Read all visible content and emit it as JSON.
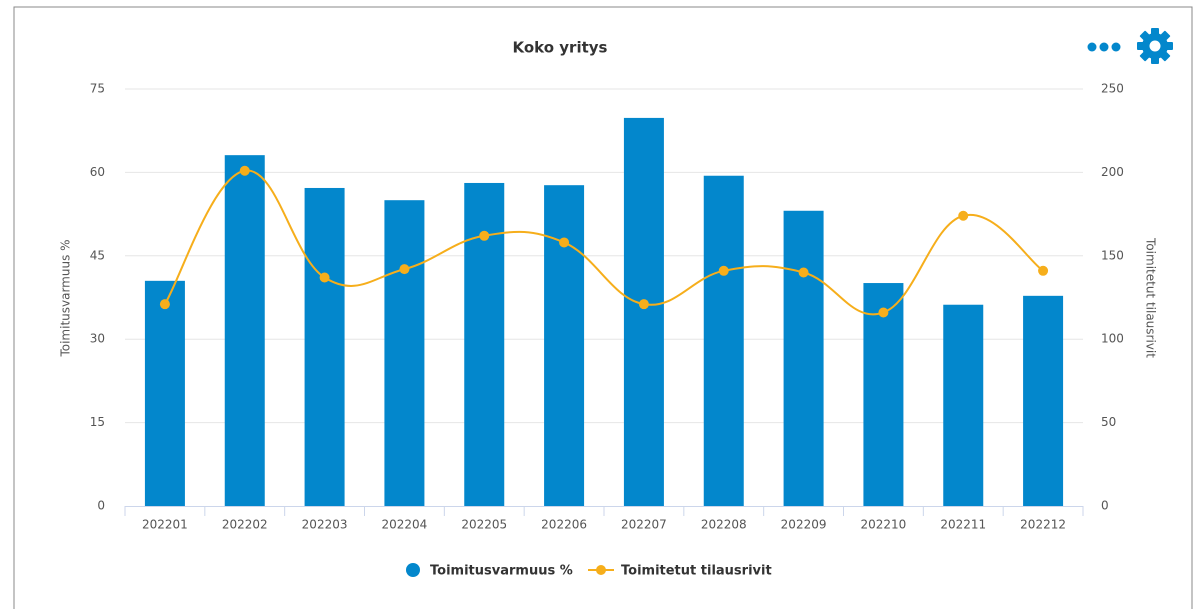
{
  "chart_data": {
    "type": "bar-line",
    "title": "Koko yritys",
    "categories": [
      "202201",
      "202202",
      "202203",
      "202204",
      "202205",
      "202206",
      "202207",
      "202208",
      "202209",
      "202210",
      "202211",
      "202212"
    ],
    "series": [
      {
        "name": "Toimitusvarmuus %",
        "type": "bar",
        "color": "#0387cc",
        "axis": "y",
        "values": [
          40.5,
          63.1,
          57.2,
          55.0,
          58.1,
          57.7,
          69.8,
          59.4,
          53.1,
          40.1,
          36.2,
          37.8
        ]
      },
      {
        "name": "Toimitetut tilausrivit",
        "type": "line",
        "color": "#f6ae1b",
        "axis": "y2",
        "values": [
          121,
          201,
          137,
          142,
          162,
          158,
          121,
          141,
          140,
          116,
          174,
          141
        ]
      }
    ],
    "ylabel": "Toimitusvarmuus %",
    "y2label": "Toimitetut tilausrivit",
    "ylim": [
      0,
      75
    ],
    "yticks": [
      0,
      15,
      30,
      45,
      60,
      75
    ],
    "y2lim": [
      0,
      250
    ],
    "y2ticks": [
      0,
      50,
      100,
      150,
      200,
      250
    ],
    "grid": true,
    "legend": "bottom"
  }
}
